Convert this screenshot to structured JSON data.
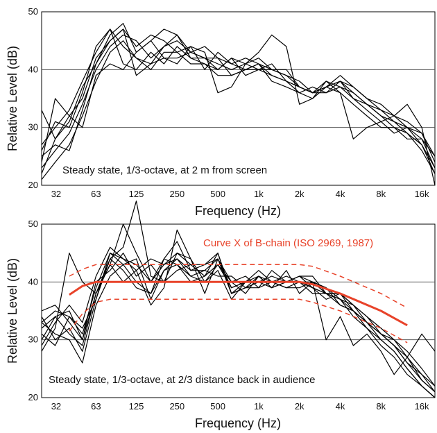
{
  "chart_data": [
    {
      "type": "line",
      "xlabel": "Frequency (Hz)",
      "ylabel": "Relative Level (dB)",
      "x_scale": "log",
      "xlim": [
        25,
        20000
      ],
      "ylim": [
        20,
        50
      ],
      "x_tick_labels": [
        "32",
        "63",
        "125",
        "250",
        "500",
        "1k",
        "2k",
        "4k",
        "8k",
        "16k"
      ],
      "x_tick_values": [
        32,
        63,
        125,
        250,
        500,
        1000,
        2000,
        4000,
        8000,
        16000
      ],
      "y_ticks": [
        20,
        30,
        40,
        50
      ],
      "grid_y": [
        30,
        40
      ],
      "annotation": "Steady state, 1/3-octave, at 2 m from screen",
      "x": [
        25,
        31.5,
        40,
        50,
        63,
        80,
        100,
        125,
        160,
        200,
        250,
        315,
        400,
        500,
        630,
        800,
        1000,
        1250,
        1600,
        2000,
        2500,
        3150,
        4000,
        5000,
        6300,
        8000,
        10000,
        12500,
        16000,
        20000
      ],
      "series": [
        {
          "values": [
            33,
            28,
            31,
            37,
            41,
            46,
            48,
            43,
            45,
            47,
            46,
            43,
            44,
            42,
            41,
            40,
            41,
            40,
            39,
            37,
            36,
            37,
            38,
            36,
            34,
            33,
            31,
            30,
            28,
            23
          ]
        },
        {
          "values": [
            26,
            31,
            30,
            36,
            44,
            47,
            41,
            40,
            43,
            41,
            44,
            42,
            41,
            40,
            42,
            39,
            40,
            41,
            38,
            36,
            37,
            36,
            37,
            35,
            33,
            31,
            29,
            30,
            27,
            22
          ]
        },
        {
          "values": [
            23,
            26,
            29,
            34,
            40,
            44,
            46,
            45,
            42,
            44,
            45,
            43,
            42,
            41,
            40,
            41,
            42,
            40,
            40,
            37,
            36,
            37,
            39,
            37,
            35,
            34,
            32,
            31,
            29,
            24
          ]
        },
        {
          "values": [
            21,
            24,
            27,
            32,
            38,
            43,
            45,
            42,
            40,
            43,
            43,
            41,
            41,
            39,
            39,
            40,
            41,
            38,
            37,
            36,
            35,
            37,
            36,
            34,
            32,
            30,
            30,
            28,
            28,
            25
          ]
        },
        {
          "values": [
            22,
            28,
            32,
            35,
            42,
            45,
            47,
            44,
            46,
            45,
            43,
            44,
            40,
            43,
            41,
            42,
            41,
            39,
            38,
            37,
            36,
            38,
            37,
            36,
            34,
            32,
            31,
            29,
            27,
            23
          ]
        },
        {
          "values": [
            27,
            30,
            33,
            38,
            43,
            47,
            44,
            42,
            41,
            42,
            42,
            43,
            42,
            42,
            39,
            40,
            40,
            40,
            39,
            38,
            36,
            36,
            38,
            35,
            34,
            32,
            30,
            29,
            26,
            22
          ]
        },
        {
          "values": [
            24,
            35,
            32,
            30,
            39,
            41,
            40,
            43,
            45,
            42,
            41,
            44,
            43,
            36,
            37,
            41,
            43,
            46,
            44,
            34,
            35,
            38,
            36,
            28,
            30,
            31,
            32,
            34,
            30,
            20
          ]
        },
        {
          "values": [
            25,
            27,
            26,
            33,
            41,
            45,
            47,
            39,
            41,
            44,
            46,
            42,
            42,
            40,
            42,
            41,
            40,
            39,
            38,
            37,
            36,
            37,
            38,
            37,
            35,
            33,
            32,
            30,
            29,
            25
          ]
        }
      ]
    },
    {
      "type": "line",
      "xlabel": "Frequency (Hz)",
      "ylabel": "Relative Level (dB)",
      "x_scale": "log",
      "xlim": [
        25,
        20000
      ],
      "ylim": [
        20,
        50
      ],
      "x_tick_labels": [
        "32",
        "63",
        "125",
        "250",
        "500",
        "1k",
        "2k",
        "4k",
        "8k",
        "16k"
      ],
      "x_tick_values": [
        32,
        63,
        125,
        250,
        500,
        1000,
        2000,
        4000,
        8000,
        16000
      ],
      "y_ticks": [
        20,
        30,
        40,
        50
      ],
      "grid_y": [
        30,
        40
      ],
      "annotation": "Steady state, 1/3-octave, at 2/3 distance back in audience",
      "reference_label": "Curve X of B-chain (ISO 2969, 1987)",
      "reference_color": "#e8432a",
      "reference_curve": {
        "x": [
          40,
          50,
          63,
          80,
          125,
          250,
          500,
          1000,
          2000,
          2500,
          4000,
          8000,
          12500
        ],
        "values": [
          37.8,
          39.3,
          40,
          40,
          40,
          40,
          40,
          40,
          40,
          39.6,
          38,
          35,
          32.5
        ]
      },
      "tolerance_upper": {
        "x": [
          40,
          50,
          63,
          80,
          125,
          250,
          500,
          1000,
          2000,
          2500,
          4000,
          8000,
          12500
        ],
        "values": [
          41,
          42.2,
          43,
          43,
          43,
          43,
          43,
          43,
          43,
          42.7,
          41,
          38,
          35.5
        ]
      },
      "tolerance_lower": {
        "x": [
          40,
          50,
          63,
          80,
          125,
          250,
          500,
          1000,
          2000,
          2500,
          4000,
          8000,
          12500
        ],
        "values": [
          31.5,
          34.5,
          36.5,
          37,
          37,
          37,
          37,
          37,
          37,
          36.5,
          35,
          32,
          29.5
        ]
      },
      "x": [
        25,
        31.5,
        40,
        50,
        63,
        80,
        100,
        125,
        160,
        200,
        250,
        315,
        400,
        500,
        630,
        800,
        1000,
        1250,
        1600,
        2000,
        2500,
        3150,
        4000,
        5000,
        6300,
        8000,
        10000,
        12500,
        16000,
        20000
      ],
      "series": [
        {
          "values": [
            32,
            34,
            35,
            30,
            38,
            43,
            50,
            45,
            40,
            44,
            47,
            42,
            43,
            44,
            38,
            40,
            41,
            39,
            40,
            41,
            39,
            38,
            36,
            35,
            33,
            30,
            28,
            25,
            22,
            20
          ]
        },
        {
          "values": [
            34,
            30,
            32,
            28,
            37,
            44,
            46,
            54,
            41,
            40,
            45,
            43,
            41,
            45,
            38,
            39,
            40,
            40,
            39,
            40,
            40,
            38,
            37,
            35,
            33,
            31,
            29,
            27,
            24,
            21
          ]
        },
        {
          "values": [
            33,
            31,
            30,
            26,
            36,
            41,
            43,
            40,
            38,
            42,
            43,
            41,
            40,
            42,
            37,
            40,
            42,
            40,
            41,
            40,
            39,
            37,
            38,
            36,
            34,
            32,
            30,
            28,
            25,
            22
          ]
        },
        {
          "values": [
            31,
            29,
            34,
            31,
            39,
            45,
            44,
            42,
            44,
            43,
            44,
            42,
            42,
            44,
            39,
            40,
            40,
            41,
            40,
            41,
            40,
            39,
            37,
            36,
            34,
            31,
            30,
            27,
            23,
            21
          ]
        },
        {
          "values": [
            29,
            33,
            36,
            33,
            41,
            46,
            44,
            43,
            40,
            43,
            45,
            44,
            40,
            43,
            40,
            41,
            39,
            40,
            40,
            41,
            41,
            38,
            38,
            36,
            33,
            31,
            29,
            26,
            24,
            22
          ]
        },
        {
          "values": [
            35,
            36,
            33,
            30,
            40,
            42,
            45,
            41,
            43,
            40,
            42,
            43,
            43,
            45,
            38,
            39,
            41,
            40,
            39,
            39,
            40,
            39,
            36,
            35,
            32,
            30,
            28,
            25,
            22,
            20
          ]
        },
        {
          "values": [
            30,
            34,
            31,
            29,
            38,
            44,
            42,
            39,
            38,
            44,
            43,
            40,
            41,
            43,
            39,
            40,
            40,
            39,
            40,
            40,
            38,
            38,
            37,
            34,
            32,
            29,
            27,
            24,
            22,
            20
          ]
        },
        {
          "values": [
            28,
            32,
            45,
            40,
            38,
            43,
            40,
            42,
            36,
            39,
            49,
            44,
            38,
            44,
            40,
            38,
            41,
            39,
            42,
            38,
            40,
            30,
            34,
            29,
            31,
            28,
            24,
            27,
            31,
            28
          ]
        },
        {
          "values": [
            33,
            35,
            34,
            32,
            37,
            45,
            43,
            44,
            37,
            42,
            44,
            41,
            42,
            41,
            41,
            39,
            39,
            42,
            40,
            40,
            39,
            38,
            38,
            35,
            33,
            31,
            29,
            26,
            23,
            21
          ]
        }
      ]
    }
  ]
}
